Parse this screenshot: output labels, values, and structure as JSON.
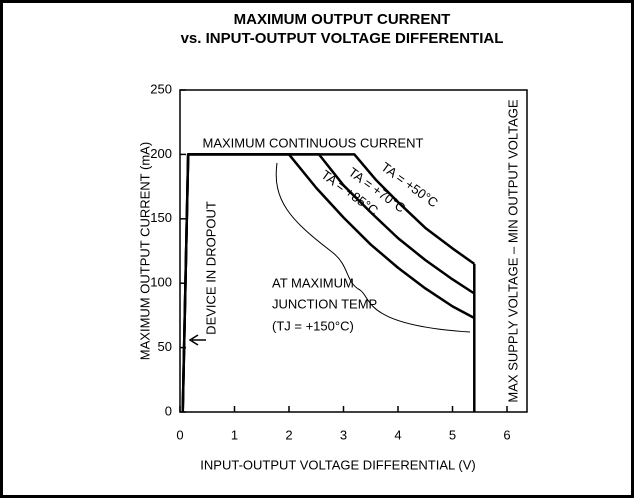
{
  "chart_data": {
    "type": "line",
    "title": [
      "MAXIMUM OUTPUT CURRENT",
      "vs. INPUT-OUTPUT VOLTAGE DIFFERENTIAL"
    ],
    "x_label": "INPUT-OUTPUT VOLTAGE DIFFERENTIAL (V)",
    "y_label": "MAXIMUM OUTPUT CURRENT (mA)",
    "xlim": [
      0,
      6
    ],
    "xticks": [
      0,
      1,
      2,
      3,
      4,
      5,
      6
    ],
    "ylim": [
      0,
      250
    ],
    "yticks": [
      0,
      50,
      100,
      150,
      200,
      250
    ],
    "series": [
      {
        "name": "TA = +50°C",
        "color": "#000000",
        "x": [
          0.05,
          0.15,
          3.2,
          3.6,
          4.0,
          4.5,
          5.0,
          5.4
        ],
        "values": [
          0,
          200,
          200,
          180,
          163,
          143,
          127,
          115
        ]
      },
      {
        "name": "TA = +70°C",
        "color": "#000000",
        "x": [
          0.05,
          0.15,
          2.55,
          3.0,
          3.5,
          4.0,
          4.5,
          5.0,
          5.4
        ],
        "values": [
          0,
          200,
          200,
          176,
          155,
          135,
          118,
          103,
          92
        ]
      },
      {
        "name": "TA = +85°C",
        "color": "#000000",
        "x": [
          0.05,
          0.15,
          2.0,
          2.5,
          3.0,
          3.5,
          4.0,
          4.5,
          5.0,
          5.4
        ],
        "values": [
          0,
          200,
          200,
          174,
          151,
          130,
          112,
          96,
          82,
          73
        ]
      }
    ],
    "boundary_x": 5.4,
    "boundary_label": "MAX SUPPLY VOLTAGE – MIN OUTPUT VOLTAGE",
    "annotations": [
      "MAXIMUM CONTINUOUS CURRENT",
      "DEVICE IN DROPOUT",
      "AT MAXIMUM",
      "JUNCTION TEMP",
      "(TJ = +150°C)"
    ]
  }
}
